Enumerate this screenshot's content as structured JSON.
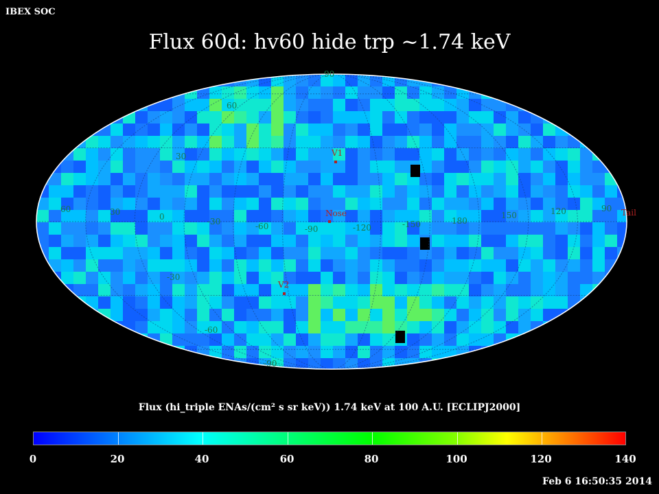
{
  "corner_label": "IBEX SOC",
  "title": "Flux   60d: hv60 hide trp ~1.74 keV",
  "caption": "Flux (hi_triple ENAs/(cm² s sr keV))  1.74 keV at 100 A.U. [ECLIPJ2000]",
  "timestamp": "Feb  6 16:50:35 2014",
  "colorbar": {
    "labels": [
      "0",
      "20",
      "40",
      "60",
      "80",
      "100",
      "120",
      "140"
    ],
    "min": 0,
    "max": 140
  },
  "colors": {
    "background": "#000000",
    "grid_label": "#1a7a4a",
    "marker": "#b22222"
  },
  "grid_labels": {
    "longitudes": [
      "60",
      "30",
      "0",
      "-30",
      "-60",
      "-90",
      "-120",
      "-150",
      "180",
      "150",
      "120",
      "90"
    ],
    "latitudes": [
      "90",
      "60",
      "30",
      "-30",
      "-60",
      "-90"
    ]
  },
  "markers": [
    {
      "label": "V1"
    },
    {
      "label": "Nose"
    },
    {
      "label": "V2"
    },
    {
      "label": "Tail"
    }
  ]
}
